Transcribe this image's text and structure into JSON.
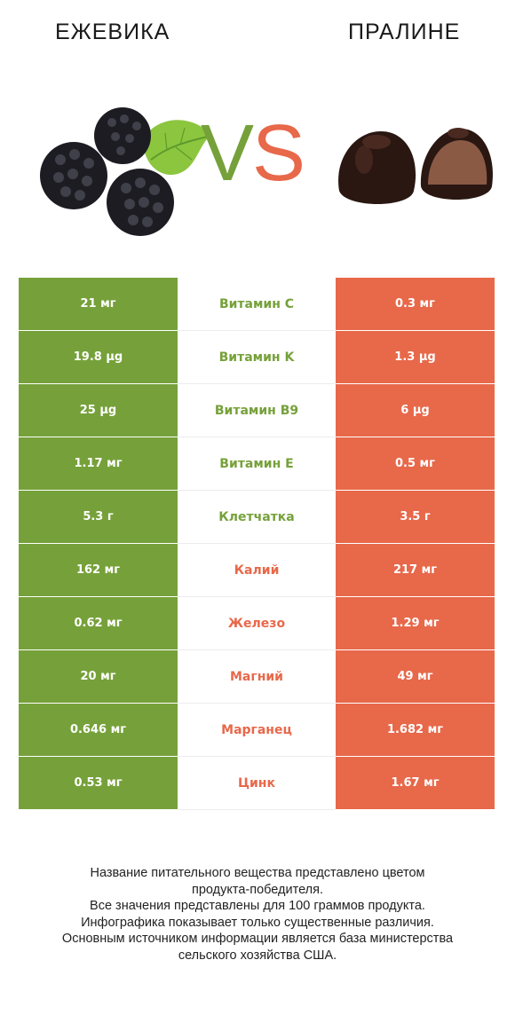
{
  "header": {
    "left_title": "ЕЖЕВИКА",
    "right_title": "ПРАЛИНЕ",
    "vs_v": "V",
    "vs_s": "S"
  },
  "colors": {
    "left": "#76a13a",
    "right": "#e8684a"
  },
  "icons": {
    "left_image": "blackberry-image",
    "right_image": "praline-image"
  },
  "rows": [
    {
      "left": "21 мг",
      "nutrient": "Витамин C",
      "right": "0.3 мг",
      "winner": "left"
    },
    {
      "left": "19.8 µg",
      "nutrient": "Витамин K",
      "right": "1.3 µg",
      "winner": "left"
    },
    {
      "left": "25 µg",
      "nutrient": "Витамин B9",
      "right": "6 µg",
      "winner": "left"
    },
    {
      "left": "1.17 мг",
      "nutrient": "Витамин E",
      "right": "0.5 мг",
      "winner": "left"
    },
    {
      "left": "5.3 г",
      "nutrient": "Клетчатка",
      "right": "3.5 г",
      "winner": "left"
    },
    {
      "left": "162 мг",
      "nutrient": "Калий",
      "right": "217 мг",
      "winner": "right"
    },
    {
      "left": "0.62 мг",
      "nutrient": "Железо",
      "right": "1.29 мг",
      "winner": "right"
    },
    {
      "left": "20 мг",
      "nutrient": "Магний",
      "right": "49 мг",
      "winner": "right"
    },
    {
      "left": "0.646 мг",
      "nutrient": "Марганец",
      "right": "1.682 мг",
      "winner": "right"
    },
    {
      "left": "0.53 мг",
      "nutrient": "Цинк",
      "right": "1.67 мг",
      "winner": "right"
    }
  ],
  "footer": {
    "line1": "Название питательного вещества представлено цветом",
    "line2": "продукта-победителя.",
    "line3": "Все значения представлены для 100 граммов продукта.",
    "line4": "Инфографика показывает только существенные различия.",
    "line5": "Основным источником информации является база министерства",
    "line6": "сельского хозяйства США."
  }
}
